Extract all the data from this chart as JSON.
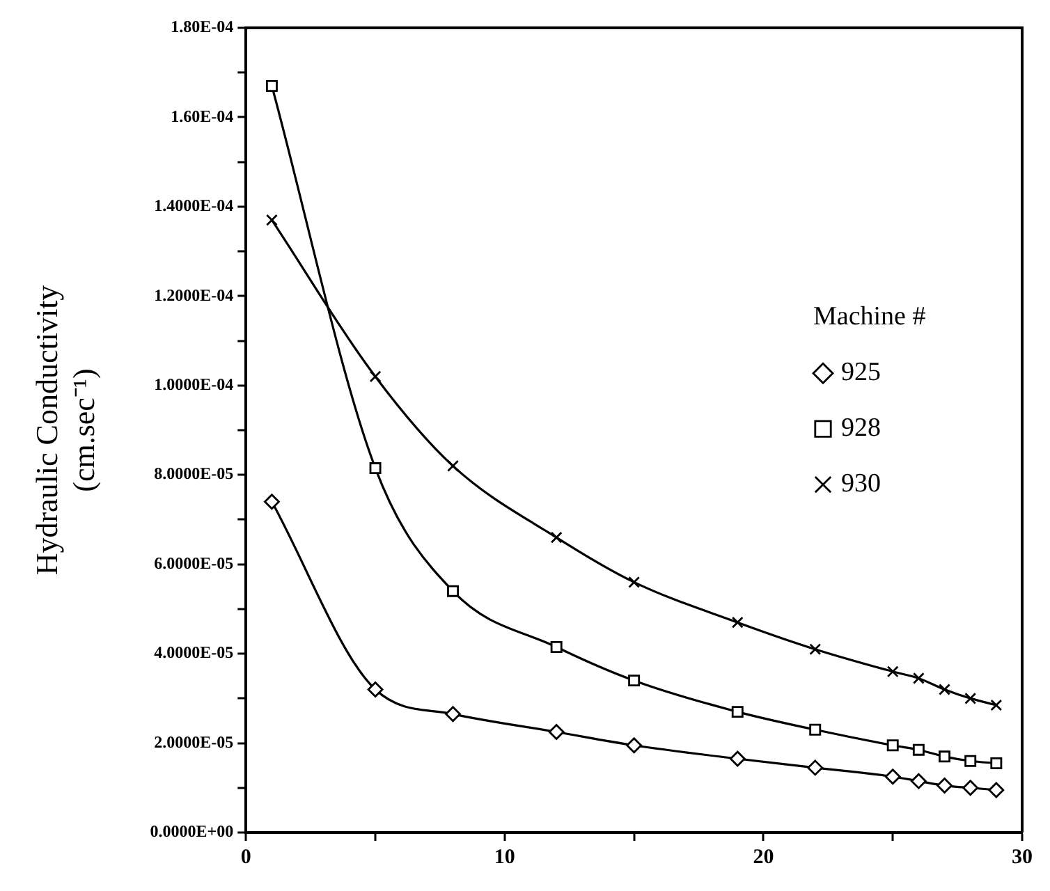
{
  "chart_data": {
    "type": "line",
    "ylabel": "Hydraulic Conductivity\n(cm.sec⁻¹)",
    "legend_title": "Machine #",
    "x": [
      1,
      5,
      8,
      12,
      15,
      19,
      22,
      25,
      26,
      27,
      28,
      29
    ],
    "series": [
      {
        "name": "925",
        "color": "#000000",
        "marker": "diamond",
        "values": [
          7.4e-05,
          3.2e-05,
          2.65e-05,
          2.25e-05,
          1.95e-05,
          1.65e-05,
          1.45e-05,
          1.25e-05,
          1.15e-05,
          1.05e-05,
          1e-05,
          9.5e-06
        ]
      },
      {
        "name": "928",
        "color": "#000000",
        "marker": "square",
        "values": [
          0.000167,
          8.15e-05,
          5.4e-05,
          4.15e-05,
          3.4e-05,
          2.7e-05,
          2.3e-05,
          1.95e-05,
          1.85e-05,
          1.7e-05,
          1.6e-05,
          1.55e-05
        ]
      },
      {
        "name": "930",
        "color": "#000000",
        "marker": "cross",
        "values": [
          0.000137,
          0.000102,
          8.2e-05,
          6.6e-05,
          5.6e-05,
          4.7e-05,
          4.1e-05,
          3.6e-05,
          3.45e-05,
          3.2e-05,
          3e-05,
          2.85e-05
        ]
      }
    ],
    "xlim": [
      0,
      30
    ],
    "xticks": [
      0,
      {
        "value": 5,
        "label": null
      },
      10,
      {
        "value": 15,
        "label": null
      },
      20,
      {
        "value": 25,
        "label": null
      },
      30
    ],
    "ylim": [
      0,
      0.00018
    ],
    "yticks": [
      {
        "value": 0,
        "label": "0.0000E+00"
      },
      {
        "value": 1e-05,
        "label": null
      },
      {
        "value": 2e-05,
        "label": "2.0000E-05"
      },
      {
        "value": 3e-05,
        "label": null
      },
      {
        "value": 4e-05,
        "label": "4.0000E-05"
      },
      {
        "value": 5e-05,
        "label": null
      },
      {
        "value": 6e-05,
        "label": "6.0000E-05"
      },
      {
        "value": 7e-05,
        "label": null
      },
      {
        "value": 8e-05,
        "label": "8.0000E-05"
      },
      {
        "value": 9e-05,
        "label": null
      },
      {
        "value": 0.0001,
        "label": "1.0000E-04"
      },
      {
        "value": 0.00011,
        "label": null
      },
      {
        "value": 0.00012,
        "label": "1.2000E-04"
      },
      {
        "value": 0.00013,
        "label": null
      },
      {
        "value": 0.00014,
        "label": "1.4000E-04"
      },
      {
        "value": 0.00015,
        "label": null
      },
      {
        "value": 0.00016,
        "label": "1.60E-04"
      },
      {
        "value": 0.00017,
        "label": null
      },
      {
        "value": 0.00018,
        "label": "1.80E-04"
      }
    ],
    "grid": false,
    "legend": "right",
    "line_style": "solid"
  }
}
